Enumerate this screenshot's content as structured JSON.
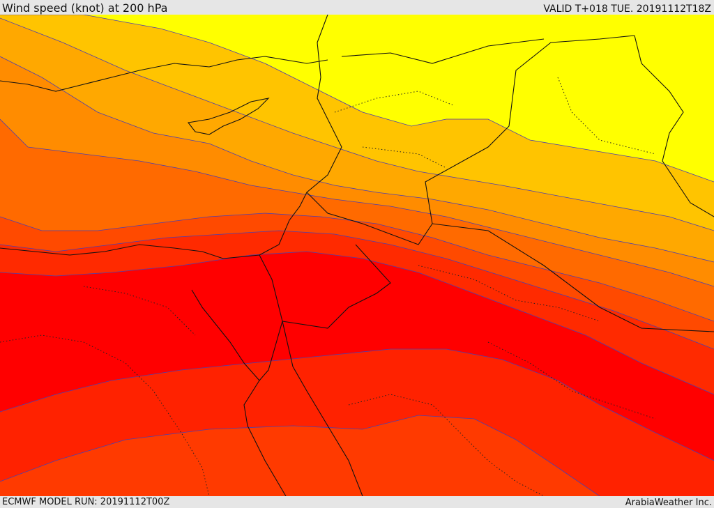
{
  "header": {
    "title": "Wind speed (knot) at 200 hPa",
    "valid": "VALID T+018 TUE. 20191112T18Z"
  },
  "footer": {
    "model_run": "ECMWF MODEL RUN: 20191112T00Z",
    "credit": "ArabiaWeather Inc."
  },
  "map": {
    "field": "wind speed at 200 hPa",
    "palette": [
      "#ffff00",
      "#ffe000",
      "#ffc400",
      "#ffa800",
      "#ff8c00",
      "#ff6a00",
      "#ff4a00",
      "#ff2a00",
      "#ff0000"
    ],
    "contour_color": "#4b3fb0",
    "border_color": "#111111"
  }
}
